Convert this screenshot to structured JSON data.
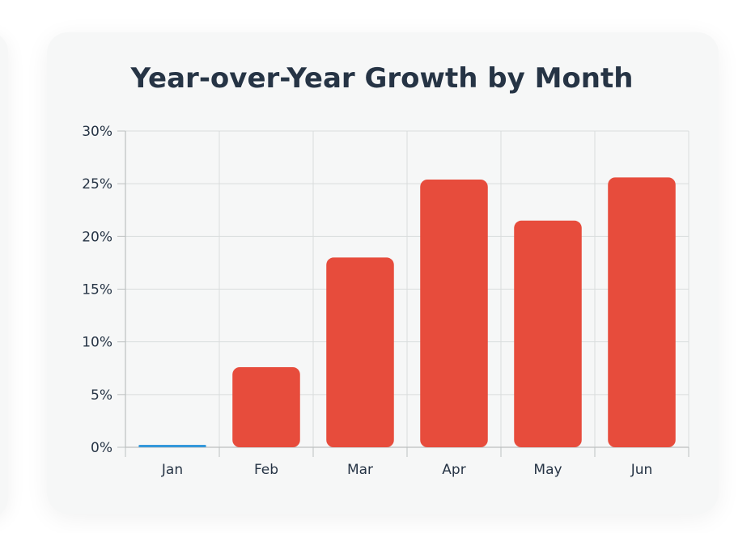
{
  "chart_data": {
    "type": "bar",
    "title": "Year-over-Year Growth by Month",
    "xlabel": "",
    "ylabel": "",
    "categories": [
      "Jan",
      "Feb",
      "Mar",
      "Apr",
      "May",
      "Jun"
    ],
    "values": [
      0.1,
      7.6,
      18.0,
      25.4,
      21.5,
      25.6
    ],
    "ylim": [
      0,
      30
    ],
    "yticks": [
      0,
      5,
      10,
      15,
      20,
      25,
      30
    ],
    "ytick_labels": [
      "0%",
      "5%",
      "10%",
      "15%",
      "20%",
      "25%",
      "30%"
    ],
    "grid": true,
    "legend": false,
    "colors": {
      "positive": "#e74c3c",
      "baseline": "#3498db",
      "grid": "#d9dcdc",
      "axis": "#bcc0c0",
      "text": "#263445"
    }
  }
}
